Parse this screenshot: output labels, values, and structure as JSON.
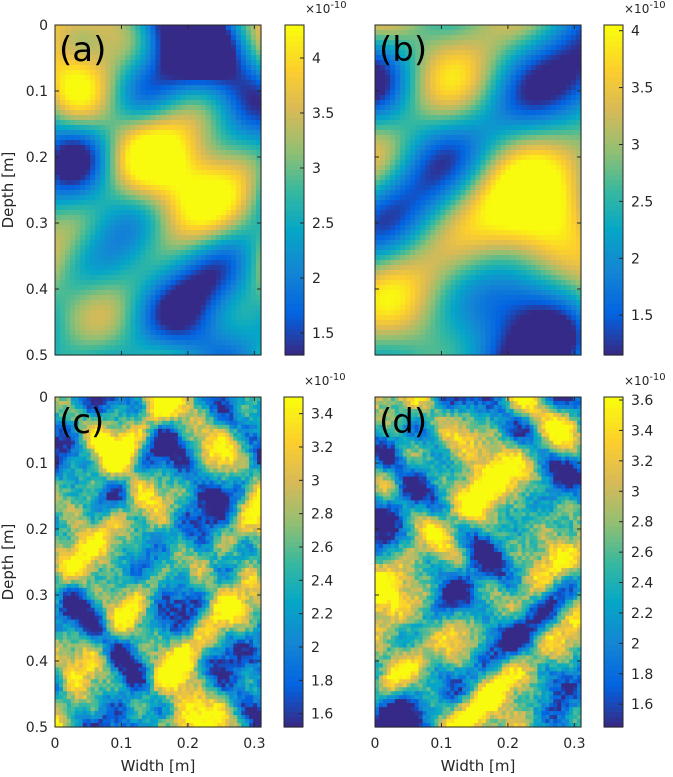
{
  "chart_data": [
    {
      "type": "heatmap",
      "panel_label": "(a)",
      "ylabel": "Depth [m]",
      "xlabel": "",
      "xlim": [
        0,
        0.31
      ],
      "ylim": [
        0,
        0.5
      ],
      "y_ticks": [
        "0",
        "0.1",
        "0.2",
        "0.3",
        "0.4",
        "0.5"
      ],
      "x_ticks": [],
      "texture": "smooth",
      "seed": 11,
      "colorbar": {
        "range": [
          1.3,
          4.3
        ],
        "ticks": [
          "1.5",
          "2",
          "2.5",
          "3",
          "3.5",
          "4"
        ],
        "tick_values": [
          1.5,
          2,
          2.5,
          3,
          3.5,
          4
        ],
        "exponent": "×10",
        "exponent_power": "-10"
      }
    },
    {
      "type": "heatmap",
      "panel_label": "(b)",
      "ylabel": "",
      "xlabel": "",
      "xlim": [
        0,
        0.31
      ],
      "ylim": [
        0,
        0.5
      ],
      "y_ticks": [],
      "x_ticks": [],
      "texture": "smooth",
      "seed": 23,
      "colorbar": {
        "range": [
          1.15,
          4.05
        ],
        "ticks": [
          "1.5",
          "2",
          "2.5",
          "3",
          "3.5",
          "4"
        ],
        "tick_values": [
          1.5,
          2,
          2.5,
          3,
          3.5,
          4
        ],
        "exponent": "×10",
        "exponent_power": "-10"
      }
    },
    {
      "type": "heatmap",
      "panel_label": "(c)",
      "ylabel": "Depth [m]",
      "xlabel": "Width [m]",
      "xlim": [
        0,
        0.31
      ],
      "ylim": [
        0,
        0.5
      ],
      "y_ticks": [
        "0",
        "0.1",
        "0.2",
        "0.3",
        "0.4",
        "0.5"
      ],
      "x_ticks": [
        "0",
        "0.1",
        "0.2",
        "0.3"
      ],
      "texture": "pixelated",
      "seed": 37,
      "colorbar": {
        "range": [
          1.52,
          3.5
        ],
        "ticks": [
          "1.6",
          "1.8",
          "2",
          "2.2",
          "2.4",
          "2.6",
          "2.8",
          "3",
          "3.2",
          "3.4"
        ],
        "tick_values": [
          1.6,
          1.8,
          2,
          2.2,
          2.4,
          2.6,
          2.8,
          3,
          3.2,
          3.4
        ],
        "exponent": "×10",
        "exponent_power": "-10"
      }
    },
    {
      "type": "heatmap",
      "panel_label": "(d)",
      "ylabel": "",
      "xlabel": "Width [m]",
      "xlim": [
        0,
        0.31
      ],
      "ylim": [
        0,
        0.5
      ],
      "y_ticks": [],
      "x_ticks": [
        "0",
        "0.1",
        "0.2",
        "0.3"
      ],
      "texture": "pixelated",
      "seed": 53,
      "colorbar": {
        "range": [
          1.45,
          3.62
        ],
        "ticks": [
          "1.6",
          "1.8",
          "2",
          "2.2",
          "2.4",
          "2.6",
          "2.8",
          "3",
          "3.2",
          "3.4",
          "3.6"
        ],
        "tick_values": [
          1.6,
          1.8,
          2,
          2.2,
          2.4,
          2.6,
          2.8,
          3,
          3.2,
          3.4,
          3.6
        ],
        "exponent": "×10",
        "exponent_power": "-10"
      }
    }
  ],
  "colormap": "parula"
}
